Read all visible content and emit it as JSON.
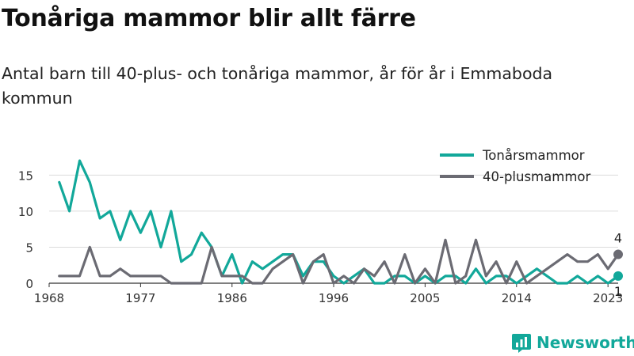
{
  "title": "Tonåriga mammor blir allt färre",
  "subtitle": "Antal barn till 40-plus- och tonåriga mammor, år för år i Emmaboda kommun",
  "brand": {
    "name": "Newsworthy",
    "icon": "newsworthy-logo-icon"
  },
  "chart_data": {
    "type": "line",
    "x": [
      1969,
      1970,
      1971,
      1972,
      1973,
      1974,
      1975,
      1976,
      1977,
      1978,
      1979,
      1980,
      1981,
      1982,
      1983,
      1984,
      1985,
      1986,
      1987,
      1988,
      1989,
      1990,
      1991,
      1992,
      1993,
      1994,
      1995,
      1996,
      1997,
      1998,
      1999,
      2000,
      2001,
      2002,
      2003,
      2004,
      2005,
      2006,
      2007,
      2008,
      2009,
      2010,
      2011,
      2012,
      2013,
      2014,
      2015,
      2016,
      2017,
      2018,
      2019,
      2020,
      2021,
      2022,
      2023,
      2024
    ],
    "xticks": [
      1968,
      1977,
      1986,
      1996,
      2005,
      2014,
      2023
    ],
    "xlim": [
      1968,
      2024
    ],
    "yticks": [
      0,
      5,
      10,
      15
    ],
    "ylim": [
      0,
      18
    ],
    "grid": true,
    "legend_position": "top-right",
    "series": [
      {
        "name": "Tonårsmammor",
        "color": "#12a89a",
        "values": [
          14,
          10,
          17,
          14,
          9,
          10,
          6,
          10,
          7,
          10,
          5,
          10,
          3,
          4,
          7,
          5,
          1,
          4,
          0,
          3,
          2,
          3,
          4,
          4,
          1,
          3,
          3,
          1,
          0,
          1,
          2,
          0,
          0,
          1,
          1,
          0,
          1,
          0,
          1,
          1,
          0,
          2,
          0,
          1,
          1,
          0,
          1,
          2,
          1,
          0,
          0,
          1,
          0,
          1,
          0,
          1
        ],
        "end_label": "1"
      },
      {
        "name": "40-plusmammor",
        "color": "#6b6b73",
        "values": [
          1,
          1,
          1,
          5,
          1,
          1,
          2,
          1,
          1,
          1,
          1,
          0,
          0,
          0,
          0,
          5,
          1,
          1,
          1,
          0,
          0,
          2,
          3,
          4,
          0,
          3,
          4,
          0,
          1,
          0,
          2,
          1,
          3,
          0,
          4,
          0,
          2,
          0,
          6,
          0,
          1,
          6,
          1,
          3,
          0,
          3,
          0,
          1,
          2,
          3,
          4,
          3,
          3,
          4,
          2,
          4
        ],
        "end_label": "4"
      }
    ]
  }
}
